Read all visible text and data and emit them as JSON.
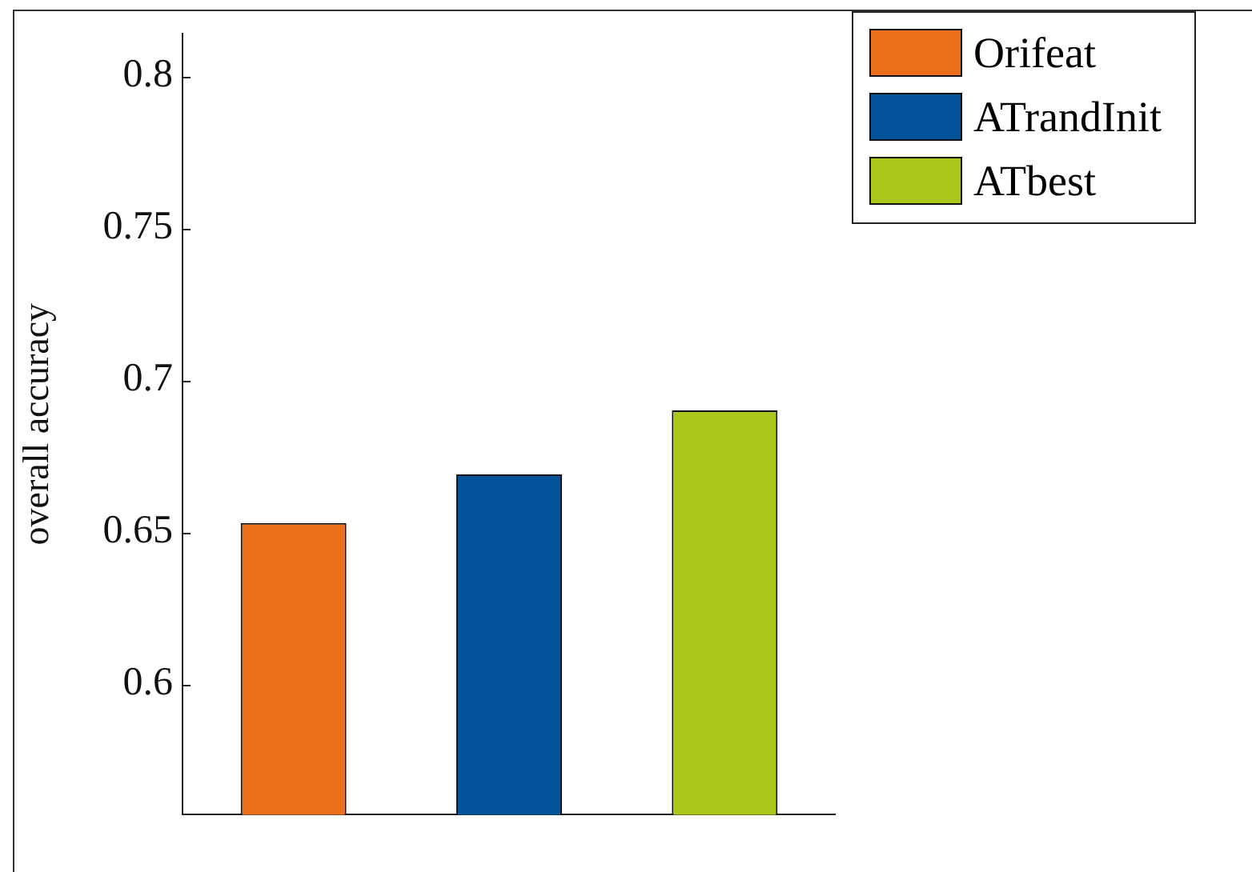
{
  "chart_data": {
    "type": "bar",
    "ylabel": "overall accuracy",
    "categories": [
      null
    ],
    "series": [
      {
        "name": "Orifeat",
        "color": "#ec6f1a",
        "values": [
          0.653
        ]
      },
      {
        "name": "ATrandInit",
        "color": "#03539b",
        "values": [
          0.669
        ]
      },
      {
        "name": "ATbest",
        "color": "#aac71c",
        "values": [
          0.69
        ]
      }
    ],
    "ylim": [
      0.557,
      0.814
    ],
    "yticks": [
      0.6,
      0.65,
      0.7,
      0.75,
      0.8
    ],
    "grid": false,
    "legend": "top right"
  }
}
